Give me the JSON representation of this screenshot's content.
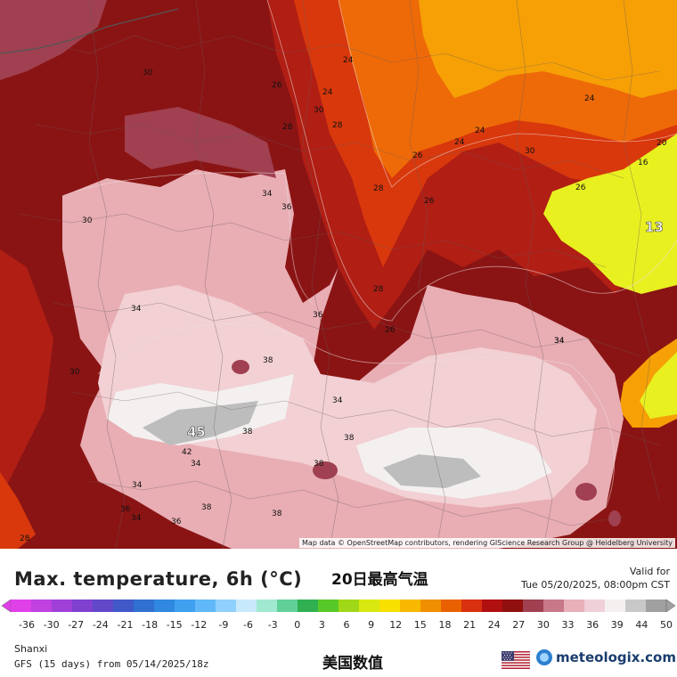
{
  "map": {
    "attribution": "Map data © OpenStreetMap contributors, rendering GIScience Research Group @ Heidelberg University",
    "big_labels": [
      "45",
      "13"
    ],
    "isoline_labels": [
      "30",
      "26",
      "24",
      "24",
      "30",
      "28",
      "28",
      "24",
      "24",
      "26",
      "24",
      "20",
      "16",
      "30",
      "26",
      "28",
      "34",
      "36",
      "26",
      "30",
      "26",
      "34",
      "36",
      "34",
      "38",
      "30",
      "28",
      "34",
      "38",
      "34",
      "42",
      "34",
      "38",
      "34",
      "38",
      "36",
      "38",
      "38",
      "34",
      "36",
      "28"
    ]
  },
  "header": {
    "title": "Max. temperature, 6h (°C)",
    "title_cn": "20日最高气温",
    "valid_label": "Valid for",
    "valid_time": "Tue 05/20/2025, 08:00pm CST"
  },
  "scale": {
    "labels": [
      "-36",
      "-30",
      "-27",
      "-24",
      "-21",
      "-18",
      "-15",
      "-12",
      "-9",
      "-6",
      "-3",
      "0",
      "3",
      "6",
      "9",
      "12",
      "15",
      "18",
      "21",
      "24",
      "27",
      "30",
      "33",
      "36",
      "39",
      "44",
      "50"
    ],
    "colors": [
      "#e040e8",
      "#c040e0",
      "#a040d8",
      "#8040d0",
      "#6048c8",
      "#4058c8",
      "#3070d0",
      "#3088e0",
      "#40a0f0",
      "#60b8f8",
      "#90d0fc",
      "#c8e8fc",
      "#a0e8d0",
      "#60d098",
      "#30b050",
      "#58c828",
      "#a0d818",
      "#d8e810",
      "#f8e000",
      "#f8b800",
      "#f09000",
      "#e86000",
      "#d83010",
      "#b01010",
      "#901010",
      "#a04050",
      "#c87888",
      "#e8b0b8",
      "#f0d0d8",
      "#f4f0f0",
      "#c8c8c8",
      "#a0a0a0"
    ]
  },
  "footer": {
    "region": "Shanxi",
    "model_run": "GFS (15 days) from 05/14/2025/18z",
    "source_cn": "美国数值",
    "brand": "meteologix.com"
  },
  "colors": {
    "deep_red": "#8a1414",
    "red": "#b01e14",
    "orange_red": "#d8380c",
    "orange": "#ee6a08",
    "yellow_orange": "#f6a006",
    "yellow": "#e8f020",
    "pink": "#e8aeb4",
    "light_pink": "#f2d0d4",
    "grey": "#bdbdbd"
  }
}
